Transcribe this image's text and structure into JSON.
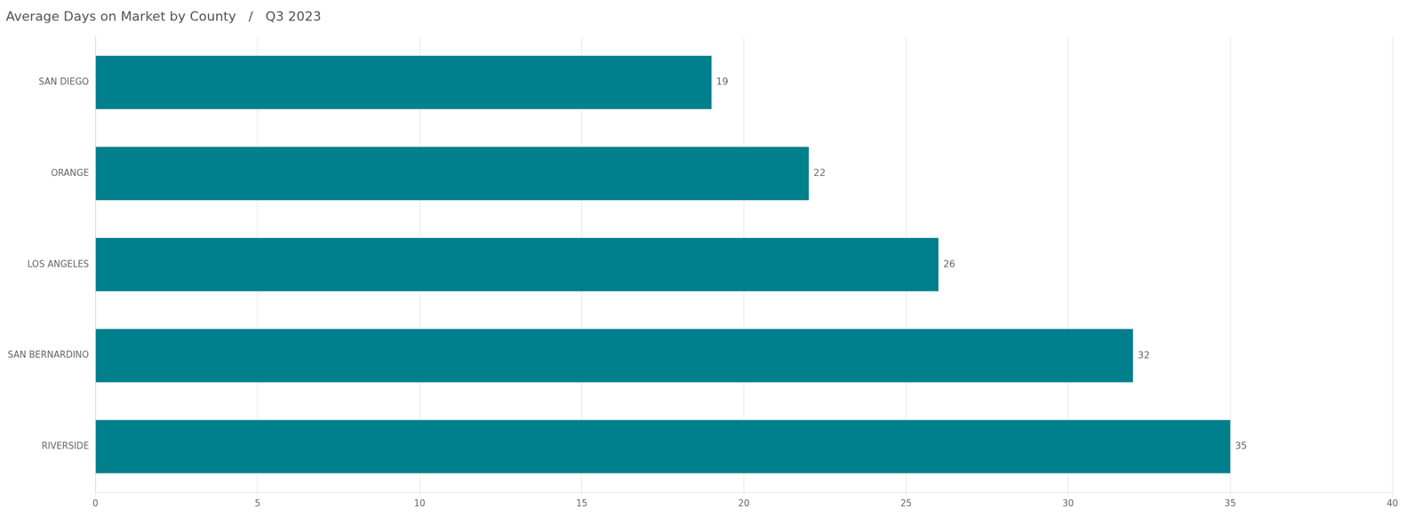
{
  "chart_data": {
    "type": "bar",
    "orientation": "horizontal",
    "title": "Average Days on Market by County   /   Q3 2023",
    "categories": [
      "SAN DIEGO",
      "ORANGE",
      "LOS ANGELES",
      "SAN BERNARDINO",
      "RIVERSIDE"
    ],
    "values": [
      19,
      22,
      26,
      32,
      35
    ],
    "color": "#007f8c",
    "xlim": [
      0,
      40
    ],
    "xticks": [
      0,
      5,
      10,
      15,
      20,
      25,
      30,
      35,
      40
    ],
    "grid": true,
    "data_labels": true
  }
}
